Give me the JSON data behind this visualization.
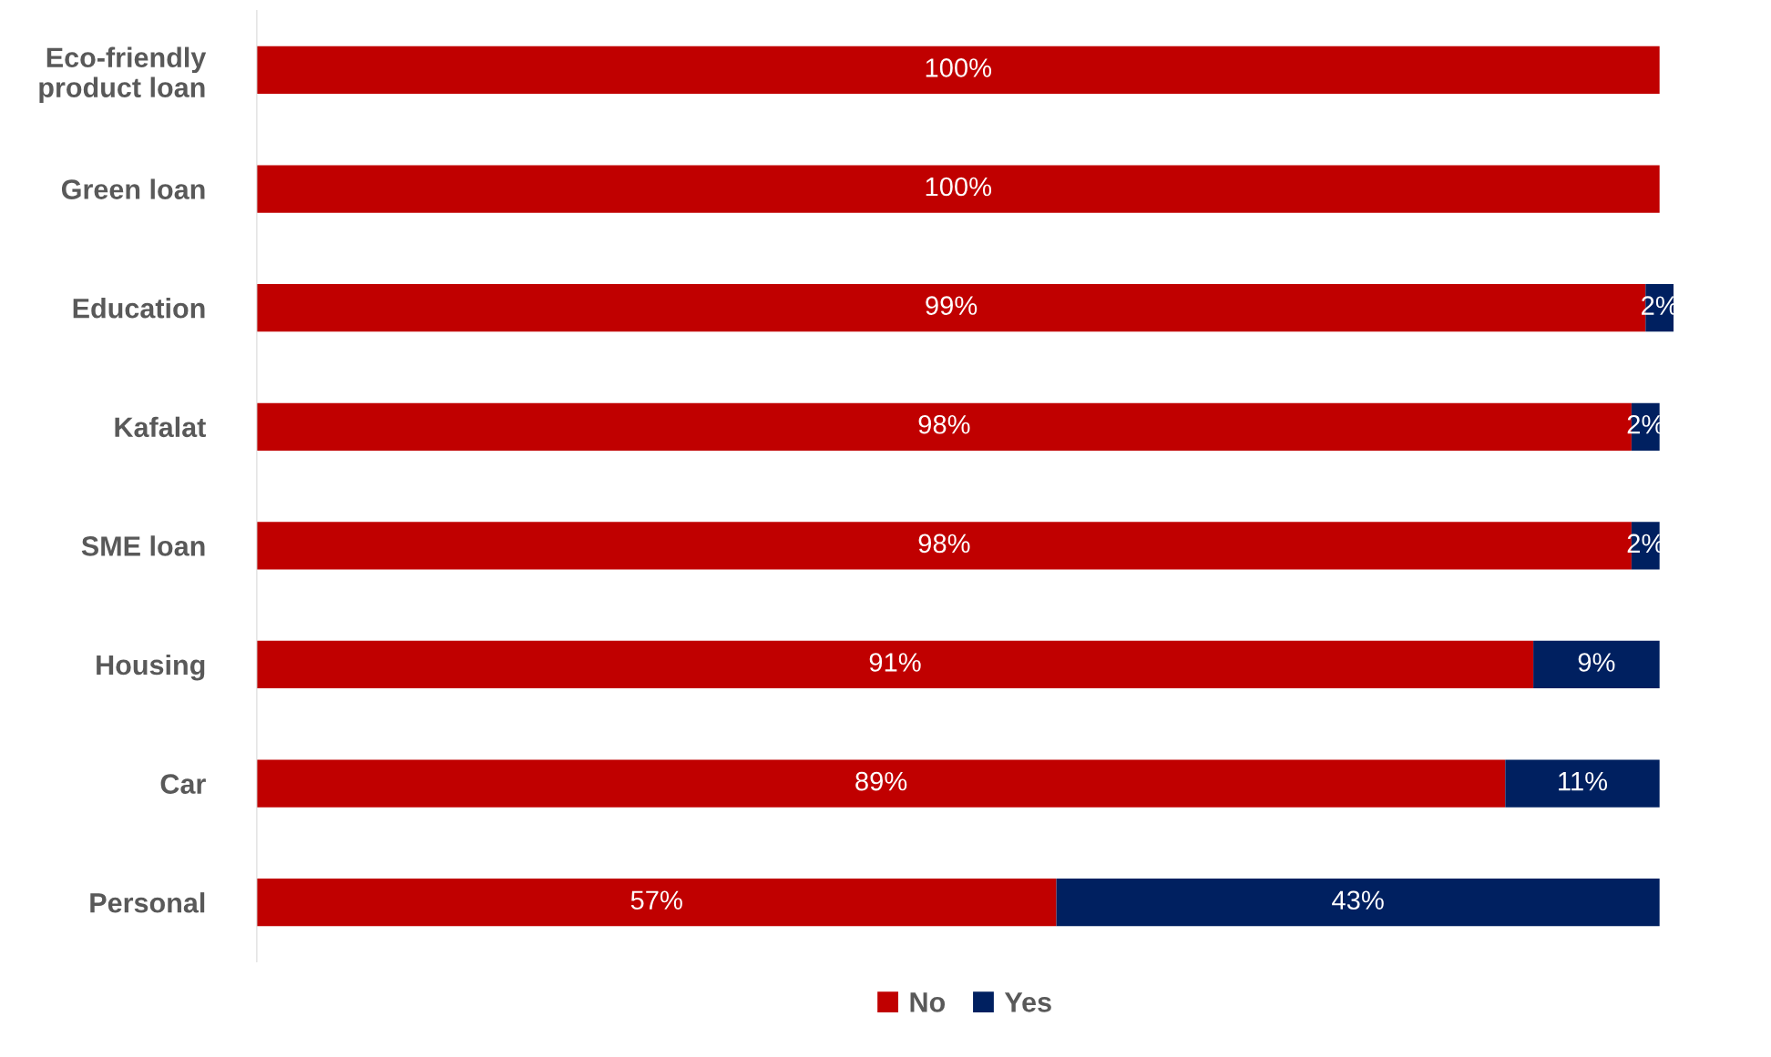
{
  "chart_data": {
    "type": "bar",
    "orientation": "horizontal",
    "stacked": true,
    "categories": [
      "Eco-friendly\nproduct loan",
      "Green loan",
      "Education",
      "Kafalat",
      "SME loan",
      "Housing",
      "Car",
      "Personal"
    ],
    "series": [
      {
        "name": "No",
        "color": "#c00000",
        "values": [
          100,
          100,
          99,
          98,
          98,
          91,
          89,
          57
        ],
        "value_labels": [
          "100%",
          "100%",
          "99%",
          "98%",
          "98%",
          "91%",
          "89%",
          "57%"
        ]
      },
      {
        "name": "Yes",
        "color": "#002060",
        "values": [
          null,
          null,
          2,
          2,
          2,
          9,
          11,
          43
        ],
        "value_labels": [
          null,
          null,
          "2%",
          "2%",
          "2%",
          "9%",
          "11%",
          "43%"
        ]
      }
    ],
    "legend": "bottom",
    "grid": false
  }
}
